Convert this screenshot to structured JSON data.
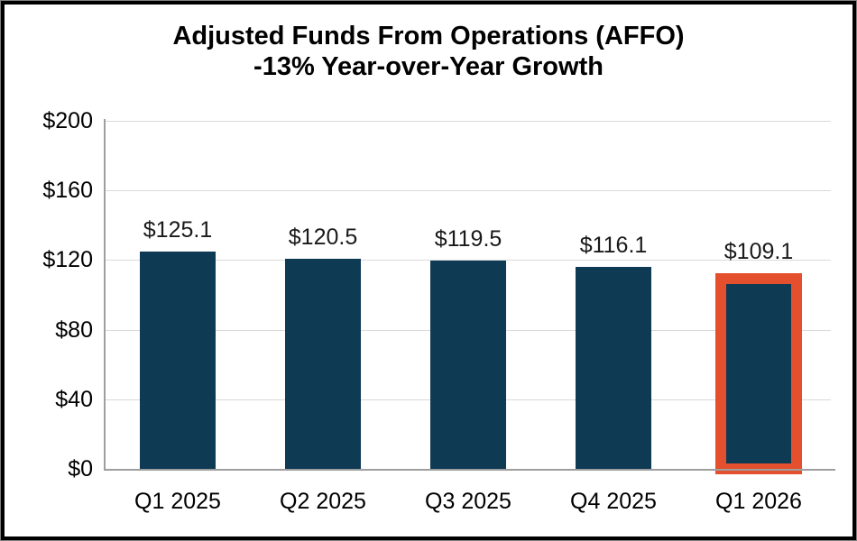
{
  "chart_data": {
    "type": "bar",
    "title_lines": [
      "Adjusted Funds From Operations (AFFO)",
      "-13% Year-over-Year Growth"
    ],
    "categories": [
      "Q1 2025",
      "Q2 2025",
      "Q3 2025",
      "Q4 2025",
      "Q1 2026"
    ],
    "values": [
      125.1,
      120.5,
      119.5,
      116.1,
      109.1
    ],
    "data_labels": [
      "$125.1",
      "$120.5",
      "$119.5",
      "$116.1",
      "$109.1"
    ],
    "y_ticks": [
      {
        "label": "$200",
        "value": 200
      },
      {
        "label": "$160",
        "value": 160
      },
      {
        "label": "$120",
        "value": 120
      },
      {
        "label": "$80",
        "value": 80
      },
      {
        "label": "$40",
        "value": 40
      },
      {
        "label": "$0",
        "value": 0
      }
    ],
    "ylim": [
      0,
      200
    ],
    "grid": true,
    "legend": false,
    "highlight": {
      "index": 4,
      "border_color": "#e4502e"
    },
    "colors": {
      "bar": "#0e3a54",
      "gridline": "#d9d9d9",
      "axis_line": "#9e9e9e",
      "title_text": "#000000",
      "frame_border": "#000000"
    }
  }
}
